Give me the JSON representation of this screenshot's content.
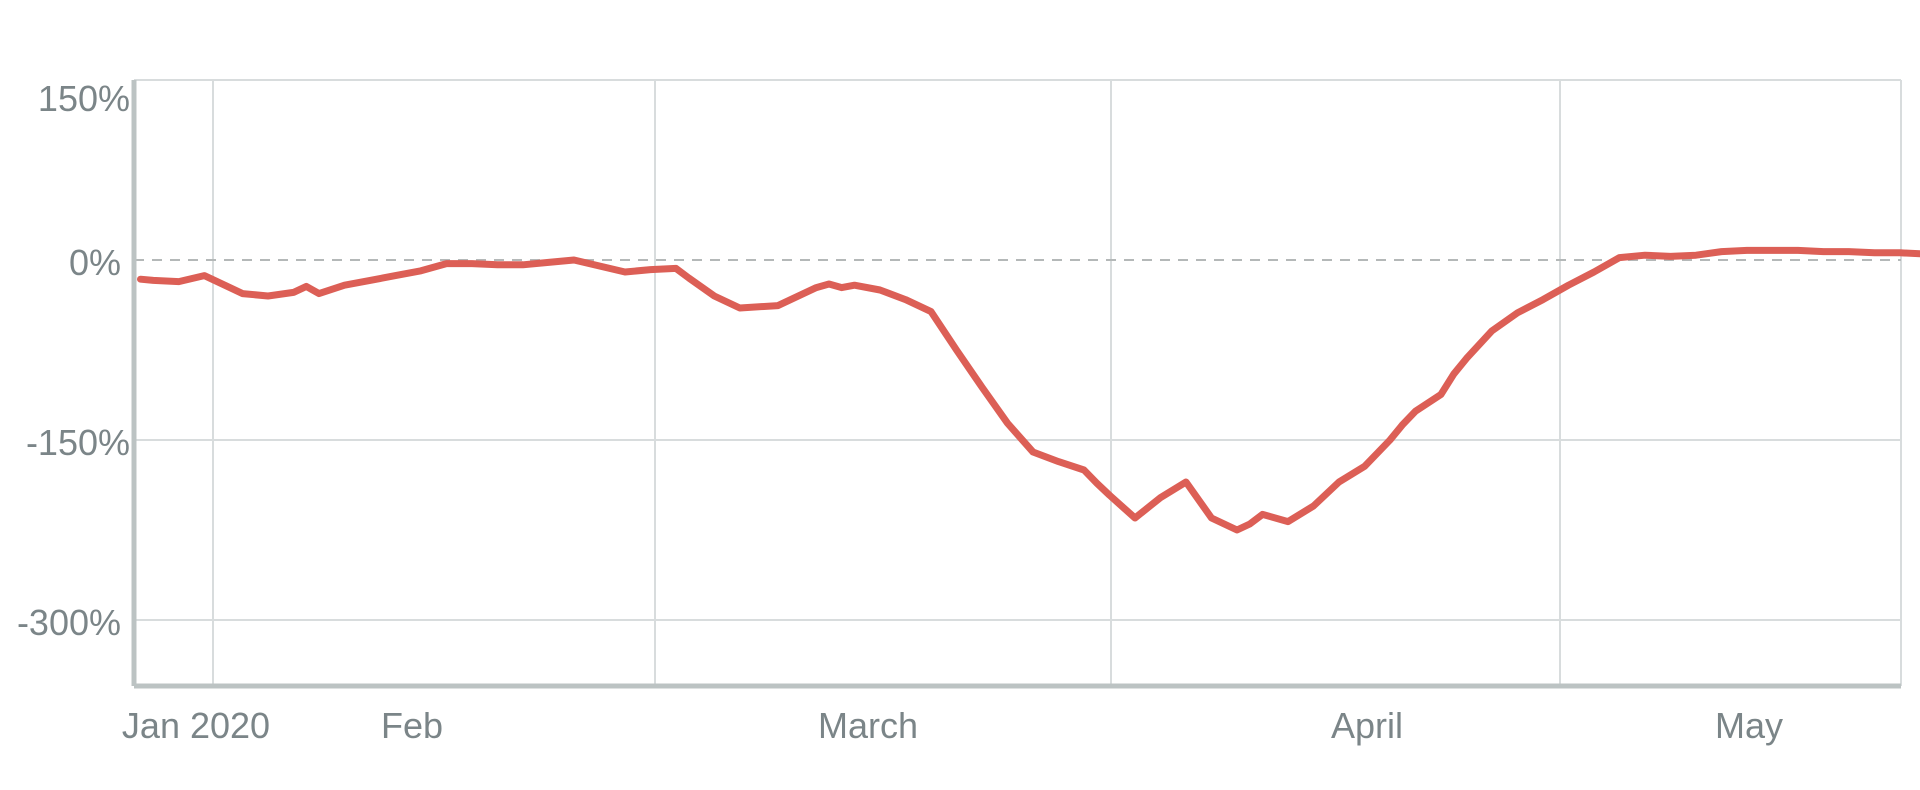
{
  "chart_data": {
    "type": "line",
    "title": "",
    "xlabel": "",
    "ylabel": "",
    "x_ticks": [
      "Jan 2020",
      "Feb",
      "March",
      "April",
      "May"
    ],
    "y_ticks": [
      "150%",
      "0%",
      "-150%",
      "-300%"
    ],
    "ylim": [
      -355,
      150
    ],
    "grid": true,
    "baseline": 0,
    "baseline_style": "dashed",
    "legend": "none",
    "colors": {
      "series": "#dc5f56",
      "grid": "#d8dcdd",
      "axis": "#bcc3c3",
      "baseline": "#b4b8b8",
      "tick_text": "#7b8588"
    },
    "series": [
      {
        "x": [
          -2,
          -1,
          1,
          3,
          5,
          6,
          8,
          10,
          11,
          12,
          14,
          16,
          18,
          20,
          22,
          24,
          26,
          28,
          30,
          32,
          34,
          36,
          38,
          40,
          41,
          43,
          45,
          48,
          50,
          51,
          52,
          53,
          54,
          56,
          58,
          60,
          62,
          64,
          66,
          68,
          70,
          72,
          73,
          74,
          76,
          78,
          80,
          82,
          84,
          85,
          86,
          88,
          90,
          92,
          94,
          96,
          97,
          98,
          100,
          101,
          102,
          104,
          106,
          108,
          110,
          112,
          114,
          116,
          118,
          120,
          122,
          124,
          126,
          128,
          130,
          132,
          134,
          136,
          138,
          140
        ],
        "y": [
          -16,
          -17,
          -18,
          -13,
          -23,
          -28,
          -30,
          -27,
          -22,
          -28,
          -21,
          -17,
          -13,
          -9,
          -3,
          -3,
          -4,
          -4,
          -2,
          0,
          -5,
          -10,
          -8,
          -7,
          -15,
          -30,
          -40,
          -38,
          -28,
          -23,
          -20,
          -23,
          -21,
          -25,
          -33,
          -43,
          -75,
          -106,
          -136,
          -160,
          -168,
          -175,
          -186,
          -196,
          -215,
          -198,
          -185,
          -215,
          -225,
          -220,
          -212,
          -218,
          -205,
          -185,
          -172,
          -150,
          -137,
          -126,
          -112,
          -95,
          -82,
          -59,
          -44,
          -33,
          -21,
          -10,
          2,
          4,
          3,
          4,
          7,
          8,
          8,
          8,
          7,
          7,
          6,
          6,
          5,
          5
        ]
      }
    ]
  }
}
